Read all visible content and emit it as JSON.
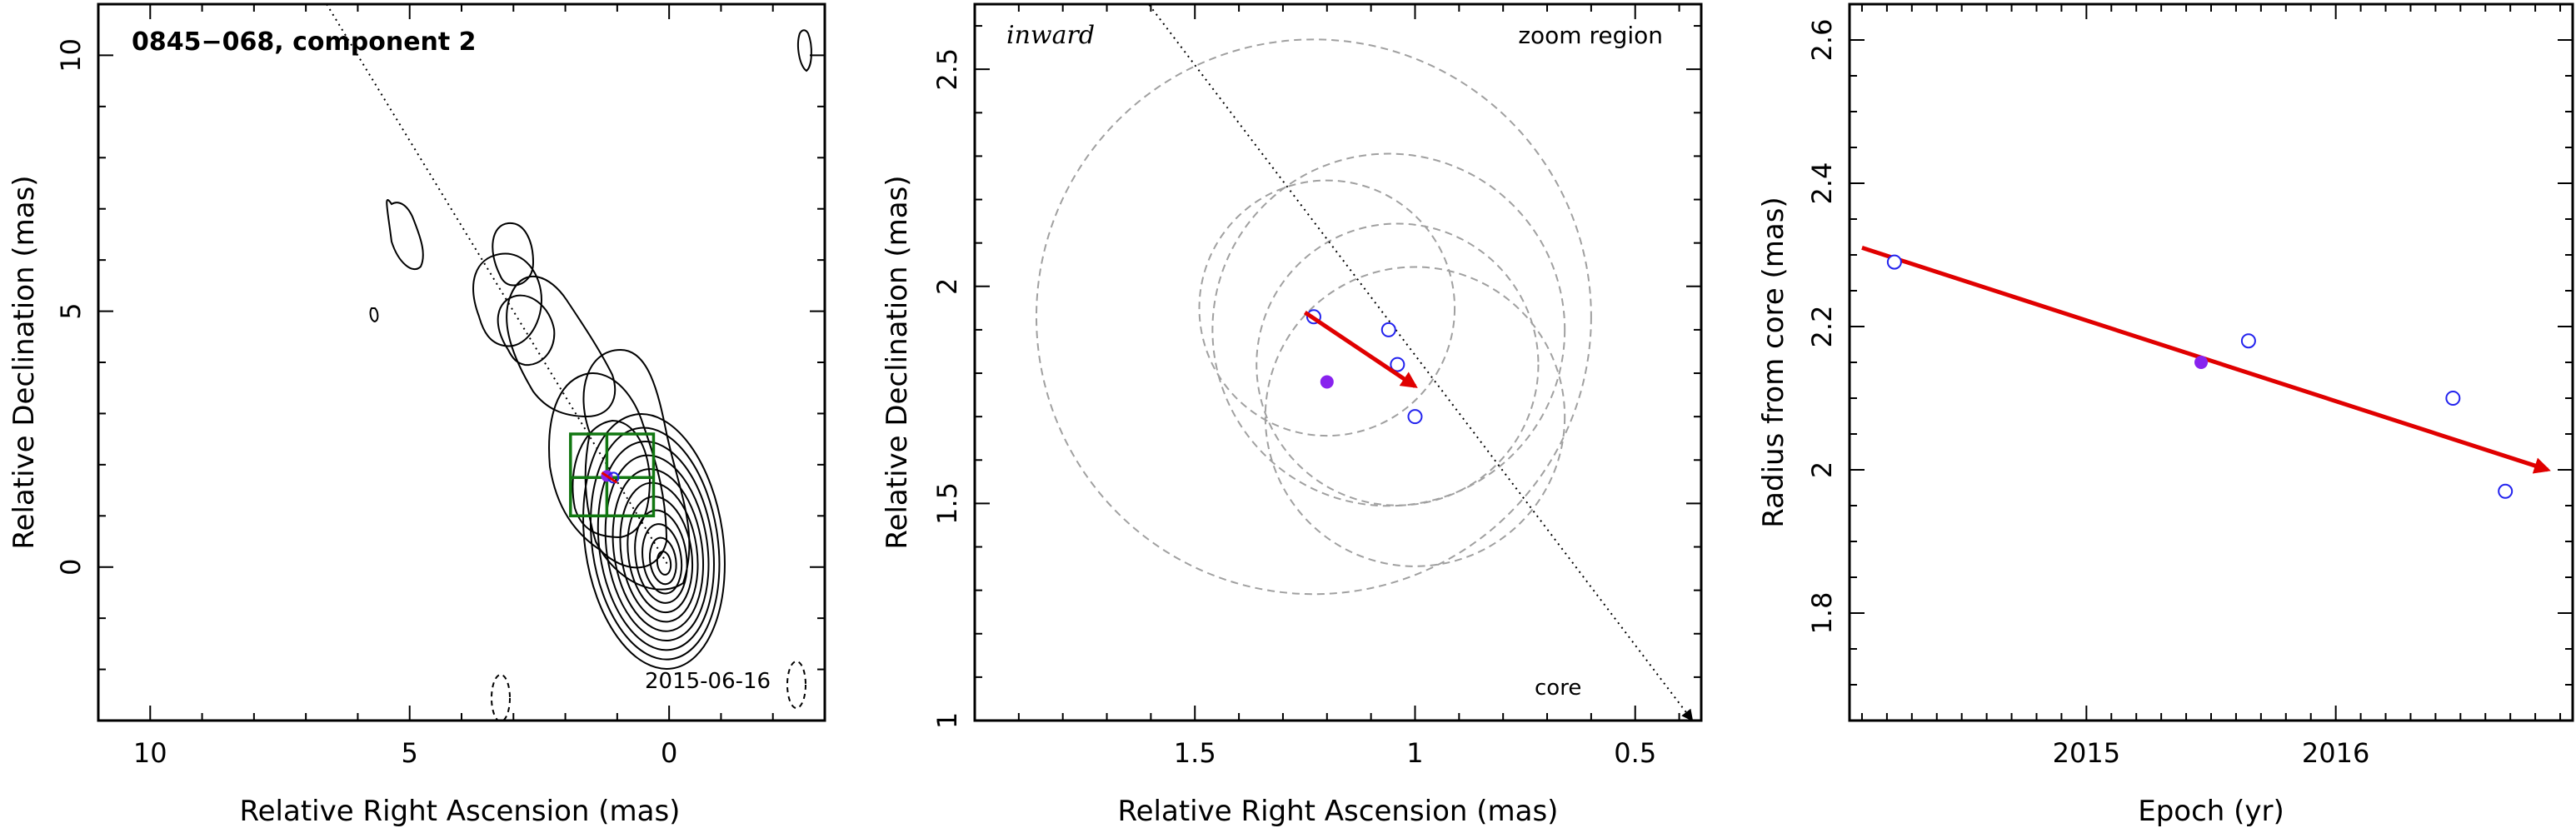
{
  "figure": {
    "colors": {
      "frame": "#000000",
      "trajectory": "#e00000",
      "open_marker": "#2222ee",
      "filled_marker": "#8822ee",
      "box": "#117711",
      "circle": "#a0a0a0"
    }
  },
  "chart_data": [
    {
      "type": "scatter",
      "panel": "map",
      "title": "0845−068, component 2",
      "epoch_label": "2015-06-16",
      "xlabel": "Relative Right Ascension (mas)",
      "ylabel": "Relative Declination (mas)",
      "xlim": [
        11,
        -3
      ],
      "ylim": [
        -3,
        11
      ],
      "x_reversed": true,
      "xticks": [
        10,
        5,
        0
      ],
      "yticks": [
        0,
        5,
        10
      ],
      "grid": false,
      "zoom_box": {
        "x": [
          0.3,
          1.9
        ],
        "y": [
          1.0,
          2.6
        ],
        "cross_x": 1.2,
        "cross_y": 1.75
      },
      "direction_line": {
        "points": [
          [
            6.6,
            11
          ],
          [
            0,
            0
          ]
        ],
        "style": "dotted"
      },
      "component_position": [
        1.2,
        1.78
      ]
    },
    {
      "type": "scatter",
      "panel": "zoom",
      "title": "",
      "labels": {
        "left": "inward",
        "right": "zoom region",
        "core": "core"
      },
      "xlabel": "Relative Right Ascension (mas)",
      "ylabel": "Relative Declination (mas)",
      "xlim": [
        2.0,
        0.35
      ],
      "ylim": [
        1.0,
        2.65
      ],
      "x_reversed": true,
      "xticks": [
        1.5,
        1,
        0.5
      ],
      "yticks": [
        1,
        1.5,
        2,
        2.5
      ],
      "grid": false,
      "series": [
        {
          "marker": "open",
          "points": [
            [
              1.23,
              1.93
            ],
            [
              1.06,
              1.9
            ],
            [
              1.04,
              1.82
            ],
            [
              1.0,
              1.7
            ]
          ]
        },
        {
          "marker": "filled",
          "points": [
            [
              1.2,
              1.78
            ]
          ]
        }
      ],
      "error_circles": [
        {
          "center": [
            1.23,
            1.93
          ],
          "radius": 0.63
        },
        {
          "center": [
            1.2,
            1.95
          ],
          "radius": 0.29
        },
        {
          "center": [
            1.06,
            1.9
          ],
          "radius": 0.4
        },
        {
          "center": [
            1.04,
            1.82
          ],
          "radius": 0.32
        },
        {
          "center": [
            1.0,
            1.7
          ],
          "radius": 0.34
        }
      ],
      "motion_arrow": {
        "from": [
          1.25,
          1.94
        ],
        "to": [
          1.0,
          1.77
        ]
      },
      "direction_line": {
        "from": [
          1.62,
          2.67
        ],
        "to": [
          0.37,
          1.0
        ],
        "style": "dotted"
      }
    },
    {
      "type": "scatter",
      "panel": "radius",
      "title": "",
      "xlabel": "Epoch (yr)",
      "ylabel": "Radius from core (mas)",
      "xlim": [
        2014.05,
        2016.95
      ],
      "ylim": [
        1.65,
        2.65
      ],
      "xticks": [
        2015,
        2016
      ],
      "yticks": [
        1.8,
        2,
        2.2,
        2.4,
        2.6
      ],
      "grid": false,
      "series": [
        {
          "marker": "open",
          "x": [
            2014.23,
            2015.65,
            2016.47,
            2016.68
          ],
          "values": [
            2.29,
            2.18,
            2.1,
            1.97
          ]
        },
        {
          "marker": "filled",
          "x": [
            2015.46
          ],
          "values": [
            2.15
          ]
        }
      ],
      "fit_arrow": {
        "from": [
          2014.1,
          2.31
        ],
        "to": [
          2016.85,
          2.0
        ]
      }
    }
  ]
}
